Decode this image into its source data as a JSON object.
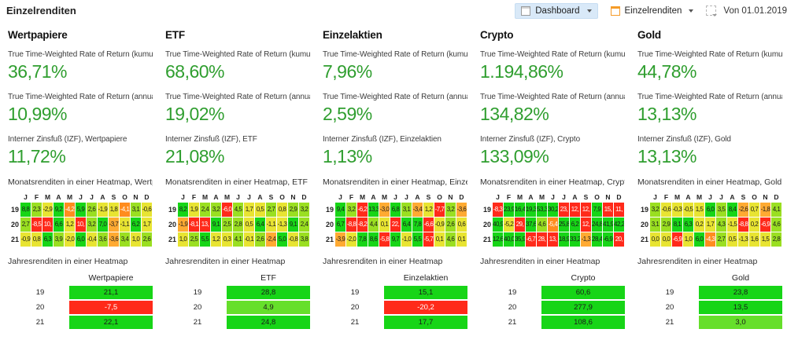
{
  "header": {
    "title": "Einzelrenditen",
    "toolbar": {
      "dashboard_label": "Dashboard",
      "view_label": "Einzelrenditen",
      "period_label": "Von 01.01.2019"
    }
  },
  "palette": {
    "G": "#17D517",
    "L": "#66DF2B",
    "g": "#9ADF21",
    "y": "#E8E432",
    "o": "#FFAA32",
    "O": "#FF8C1E",
    "R": "#FF2A1A"
  },
  "white_text": [
    "O",
    "R"
  ],
  "value_color": "#2F9E2F",
  "month_letters": [
    "J",
    "F",
    "M",
    "A",
    "M",
    "J",
    "J",
    "A",
    "S",
    "O",
    "N",
    "D"
  ],
  "years": [
    "19",
    "20",
    "21"
  ],
  "metric_labels": {
    "twror_cum": "True Time-Weighted Rate of Return (kumuliert)",
    "twror_ann": "True Time-Weighted Rate of Return (annualisiert)"
  },
  "monthly_title_prefix": "Monatsrenditen in einer Heatmap, ",
  "yearly_title": "Jahresrenditen in einer Heatmap",
  "columns": [
    {
      "name": "Wertpapiere",
      "izf_label": "Interner Zinsfuß (IZF), Wertpapiere",
      "twror_cum": "36,71%",
      "twror_ann": "10,99%",
      "izf": "11,72%",
      "monthly": [
        [
          [
            "8,8",
            "G"
          ],
          [
            "2,3",
            "g"
          ],
          [
            "-2,9",
            "y"
          ],
          [
            "9,2",
            "G"
          ],
          [
            "-4,2",
            "O"
          ],
          [
            "5,9",
            "G"
          ],
          [
            "2,6",
            "g"
          ],
          [
            "-1,9",
            "y"
          ],
          [
            "1,8",
            "y"
          ],
          [
            "-4,1",
            "O"
          ],
          [
            "3,1",
            "g"
          ],
          [
            "-0,6",
            "y"
          ]
        ],
        [
          [
            "2,7",
            "g"
          ],
          [
            "-8,5",
            "R"
          ],
          [
            "10,",
            "R"
          ],
          [
            "6,6",
            "G"
          ],
          [
            "1,2",
            "y"
          ],
          [
            "10,",
            "R"
          ],
          [
            "3,2",
            "g"
          ],
          [
            "7,0",
            "G"
          ],
          [
            "-3,7",
            "o"
          ],
          [
            "-1,1",
            "y"
          ],
          [
            "6,2",
            "G"
          ],
          [
            "1,7",
            "y"
          ]
        ],
        [
          [
            "-0,9",
            "y"
          ],
          [
            "0,8",
            "y"
          ],
          [
            "6,3",
            "G"
          ],
          [
            "3,9",
            "g"
          ],
          [
            "-2,0",
            "y"
          ],
          [
            "6,0",
            "G"
          ],
          [
            "-0,4",
            "y"
          ],
          [
            "3,6",
            "g"
          ],
          [
            "-3,6",
            "o"
          ],
          [
            "3,4",
            "g"
          ],
          [
            "1,0",
            "y"
          ],
          [
            "2,6",
            "g"
          ]
        ]
      ],
      "yearly": [
        [
          "21,1",
          "G"
        ],
        [
          "-7,5",
          "R"
        ],
        [
          "22,1",
          "G"
        ]
      ]
    },
    {
      "name": "ETF",
      "izf_label": "Interner Zinsfuß (IZF), ETF",
      "twror_cum": "68,60%",
      "twror_ann": "19,02%",
      "izf": "21,08%",
      "monthly": [
        [
          [
            "8,2",
            "G"
          ],
          [
            "1,9",
            "y"
          ],
          [
            "2,4",
            "g"
          ],
          [
            "3,2",
            "g"
          ],
          [
            "-6,0",
            "R"
          ],
          [
            "4,5",
            "g"
          ],
          [
            "1,7",
            "y"
          ],
          [
            "0,5",
            "y"
          ],
          [
            "2,7",
            "g"
          ],
          [
            "0,8",
            "y"
          ],
          [
            "2,9",
            "g"
          ],
          [
            "3,2",
            "g"
          ]
        ],
        [
          [
            "-1,9",
            "o"
          ],
          [
            "-8,1",
            "R"
          ],
          [
            "13,",
            "R"
          ],
          [
            "9,1",
            "G"
          ],
          [
            "2,5",
            "g"
          ],
          [
            "2,8",
            "g"
          ],
          [
            "0,5",
            "y"
          ],
          [
            "6,4",
            "G"
          ],
          [
            "-1,1",
            "y"
          ],
          [
            "-1,3",
            "y"
          ],
          [
            "9,1",
            "G"
          ],
          [
            "2,4",
            "g"
          ]
        ],
        [
          [
            "1,0",
            "y"
          ],
          [
            "2,5",
            "g"
          ],
          [
            "5,5",
            "G"
          ],
          [
            "1,2",
            "y"
          ],
          [
            "0,3",
            "y"
          ],
          [
            "4,1",
            "g"
          ],
          [
            "-0,1",
            "y"
          ],
          [
            "2,6",
            "g"
          ],
          [
            "-2,4",
            "o"
          ],
          [
            "5,0",
            "G"
          ],
          [
            "-0,8",
            "y"
          ],
          [
            "3,8",
            "g"
          ]
        ]
      ],
      "yearly": [
        [
          "28,8",
          "G"
        ],
        [
          "4,9",
          "L"
        ],
        [
          "24,8",
          "G"
        ]
      ]
    },
    {
      "name": "Einzelaktien",
      "izf_label": "Interner Zinsfuß (IZF), Einzelaktien",
      "twror_cum": "7,96%",
      "twror_ann": "2,59%",
      "izf": "1,13%",
      "monthly": [
        [
          [
            "9,4",
            "G"
          ],
          [
            "3,2",
            "g"
          ],
          [
            "-6,2",
            "R"
          ],
          [
            "13,3",
            "G"
          ],
          [
            "-3,0",
            "o"
          ],
          [
            "6,8",
            "G"
          ],
          [
            "3,1",
            "g"
          ],
          [
            "-3,4",
            "o"
          ],
          [
            "1,2",
            "y"
          ],
          [
            "-7,7",
            "R"
          ],
          [
            "3,2",
            "g"
          ],
          [
            "-3,6",
            "o"
          ]
        ],
        [
          [
            "6,7",
            "G"
          ],
          [
            "-8,8",
            "R"
          ],
          [
            "-8,2",
            "R"
          ],
          [
            "4,4",
            "g"
          ],
          [
            "0,1",
            "y"
          ],
          [
            "22,",
            "R"
          ],
          [
            "6,4",
            "G"
          ],
          [
            "7,8",
            "G"
          ],
          [
            "-6,6",
            "R"
          ],
          [
            "-0,9",
            "y"
          ],
          [
            "2,6",
            "g"
          ],
          [
            "0,6",
            "y"
          ]
        ],
        [
          [
            "-3,9",
            "o"
          ],
          [
            "-2,0",
            "y"
          ],
          [
            "7,8",
            "G"
          ],
          [
            "8,6",
            "G"
          ],
          [
            "-5,8",
            "R"
          ],
          [
            "9,7",
            "G"
          ],
          [
            "-1,0",
            "y"
          ],
          [
            "5,5",
            "G"
          ],
          [
            "-5,7",
            "R"
          ],
          [
            "0,1",
            "y"
          ],
          [
            "4,6",
            "g"
          ],
          [
            "0,1",
            "y"
          ]
        ]
      ],
      "yearly": [
        [
          "15,1",
          "G"
        ],
        [
          "-20,2",
          "R"
        ],
        [
          "17,7",
          "G"
        ]
      ]
    },
    {
      "name": "Crypto",
      "izf_label": "Interner Zinsfuß (IZF), Crypto",
      "twror_cum": "1.194,86%",
      "twror_ann": "134,82%",
      "izf": "133,09%",
      "monthly": [
        [
          [
            "-8,3",
            "R"
          ],
          [
            "23,9",
            "G"
          ],
          [
            "16,4",
            "G"
          ],
          [
            "19,3",
            "G"
          ],
          [
            "53,3",
            "G"
          ],
          [
            "30,2",
            "G"
          ],
          [
            "23,",
            "R"
          ],
          [
            "12,",
            "R"
          ],
          [
            "12,",
            "R"
          ],
          [
            "7,9",
            "G"
          ],
          [
            "15,",
            "R"
          ],
          [
            "11,",
            "R"
          ]
        ],
        [
          [
            "40,9",
            "G"
          ],
          [
            "-5,2",
            "y"
          ],
          [
            "29,",
            "R"
          ],
          [
            "37,6",
            "G"
          ],
          [
            "4,6",
            "g"
          ],
          [
            "-5,4",
            "O"
          ],
          [
            "25,8",
            "G"
          ],
          [
            "6,2",
            "G"
          ],
          [
            "12,",
            "R"
          ],
          [
            "24,8",
            "G"
          ],
          [
            "41,9",
            "G"
          ],
          [
            "42,2",
            "G"
          ]
        ],
        [
          [
            "12,6",
            "G"
          ],
          [
            "40,0",
            "G"
          ],
          [
            "35,9",
            "G"
          ],
          [
            "-6,7",
            "R"
          ],
          [
            "28,",
            "R"
          ],
          [
            "13,",
            "R"
          ],
          [
            "18,9",
            "G"
          ],
          [
            "33,2",
            "G"
          ],
          [
            "-1,3",
            "o"
          ],
          [
            "28,4",
            "G"
          ],
          [
            "-6,9",
            "G"
          ],
          [
            "20,",
            "R"
          ]
        ]
      ],
      "yearly": [
        [
          "60,6",
          "G"
        ],
        [
          "277,9",
          "G"
        ],
        [
          "108,6",
          "G"
        ]
      ]
    },
    {
      "name": "Gold",
      "izf_label": "Interner Zinsfuß (IZF), Gold",
      "twror_cum": "44,78%",
      "twror_ann": "13,13%",
      "izf": "13,13%",
      "monthly": [
        [
          [
            "3,2",
            "g"
          ],
          [
            "-0,6",
            "y"
          ],
          [
            "-0,3",
            "y"
          ],
          [
            "-0,5",
            "y"
          ],
          [
            "1,5",
            "y"
          ],
          [
            "6,0",
            "G"
          ],
          [
            "3,5",
            "g"
          ],
          [
            "8,4",
            "G"
          ],
          [
            "-2,6",
            "o"
          ],
          [
            "0,7",
            "y"
          ],
          [
            "-1,8",
            "o"
          ],
          [
            "4,1",
            "g"
          ]
        ],
        [
          [
            "3,1",
            "g"
          ],
          [
            "2,9",
            "g"
          ],
          [
            "8,1",
            "G"
          ],
          [
            "6,3",
            "G"
          ],
          [
            "0,2",
            "y"
          ],
          [
            "1,7",
            "y"
          ],
          [
            "4,3",
            "g"
          ],
          [
            "-1,5",
            "y"
          ],
          [
            "-8,8",
            "R"
          ],
          [
            "0,2",
            "y"
          ],
          [
            "-6,9",
            "R"
          ],
          [
            "4,6",
            "g"
          ]
        ],
        [
          [
            "0,0",
            "y"
          ],
          [
            "0,0",
            "y"
          ],
          [
            "-6,9",
            "R"
          ],
          [
            "1,0",
            "y"
          ],
          [
            "6,0",
            "G"
          ],
          [
            "-4,3",
            "O"
          ],
          [
            "2,7",
            "g"
          ],
          [
            "0,5",
            "y"
          ],
          [
            "-1,3",
            "y"
          ],
          [
            "1,6",
            "y"
          ],
          [
            "1,5",
            "y"
          ],
          [
            "2,8",
            "g"
          ]
        ]
      ],
      "yearly": [
        [
          "23,8",
          "G"
        ],
        [
          "13,5",
          "G"
        ],
        [
          "3,0",
          "L"
        ]
      ]
    }
  ]
}
